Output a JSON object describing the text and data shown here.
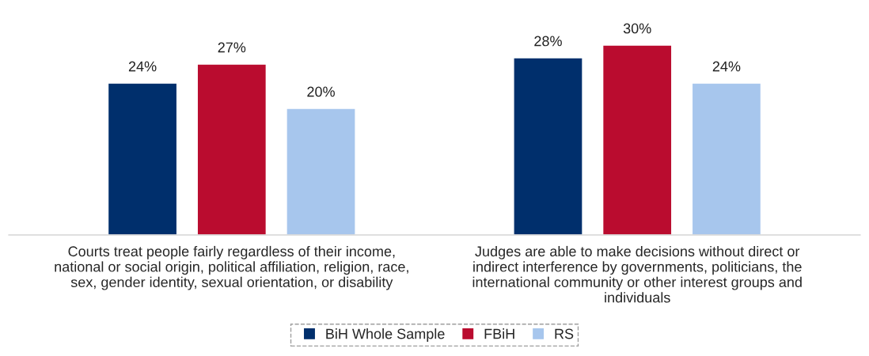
{
  "chart_data": {
    "type": "bar",
    "categories": [
      "Courts treat people fairly regardless of their income,\nnational or social origin, political affiliation, religion, race,\nsex, gender identity, sexual orientation, or disability",
      "Judges are able to make decisions without direct or\nindirect interference by governments, politicians, the\ninternational community or other interest groups and\nindividuals"
    ],
    "series": [
      {
        "name": "BiH Whole Sample",
        "color": "#002f6c",
        "values": [
          24,
          28
        ],
        "value_labels": [
          "24%",
          "28%"
        ]
      },
      {
        "name": "FBiH",
        "color": "#ba0c2f",
        "values": [
          27,
          30
        ],
        "value_labels": [
          "27%",
          "30%"
        ]
      },
      {
        "name": "RS",
        "color": "#a7c6ed",
        "values": [
          20,
          24
        ],
        "value_labels": [
          "20%",
          "24%"
        ]
      }
    ],
    "legend": "bottom",
    "grid": false
  }
}
